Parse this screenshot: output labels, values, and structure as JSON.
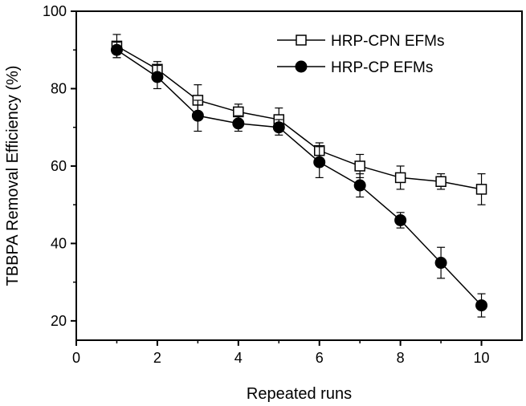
{
  "chart_data": {
    "type": "line",
    "title": "",
    "xlabel": "Repeated runs",
    "ylabel": "TBBPA Removal Efficiency (%)",
    "xlim": [
      0,
      11
    ],
    "ylim": [
      15,
      100
    ],
    "xticks": [
      0,
      2,
      4,
      6,
      8,
      10
    ],
    "xtick_labels": [
      "0",
      "2",
      "4",
      "6",
      "8",
      "10"
    ],
    "yticks": [
      20,
      40,
      60,
      80,
      100
    ],
    "ytick_labels": [
      "20",
      "40",
      "60",
      "80",
      "100"
    ],
    "grid": false,
    "legend_position": "top-right",
    "x": [
      1,
      2,
      3,
      4,
      5,
      6,
      7,
      8,
      9,
      10
    ],
    "series": [
      {
        "name": "HRP-CPN EFMs",
        "marker": "open-square",
        "color": "#000000",
        "values": [
          91,
          85,
          77,
          74,
          72,
          64,
          60,
          57,
          56,
          54
        ],
        "errors": [
          3,
          2,
          4,
          2,
          3,
          2,
          3,
          3,
          2,
          4
        ]
      },
      {
        "name": "HRP-CP EFMs",
        "marker": "filled-circle",
        "color": "#000000",
        "values": [
          90,
          83,
          73,
          71,
          70,
          61,
          55,
          46,
          35,
          24
        ],
        "errors": [
          2,
          3,
          4,
          2,
          2,
          4,
          3,
          2,
          4,
          3
        ]
      }
    ]
  }
}
